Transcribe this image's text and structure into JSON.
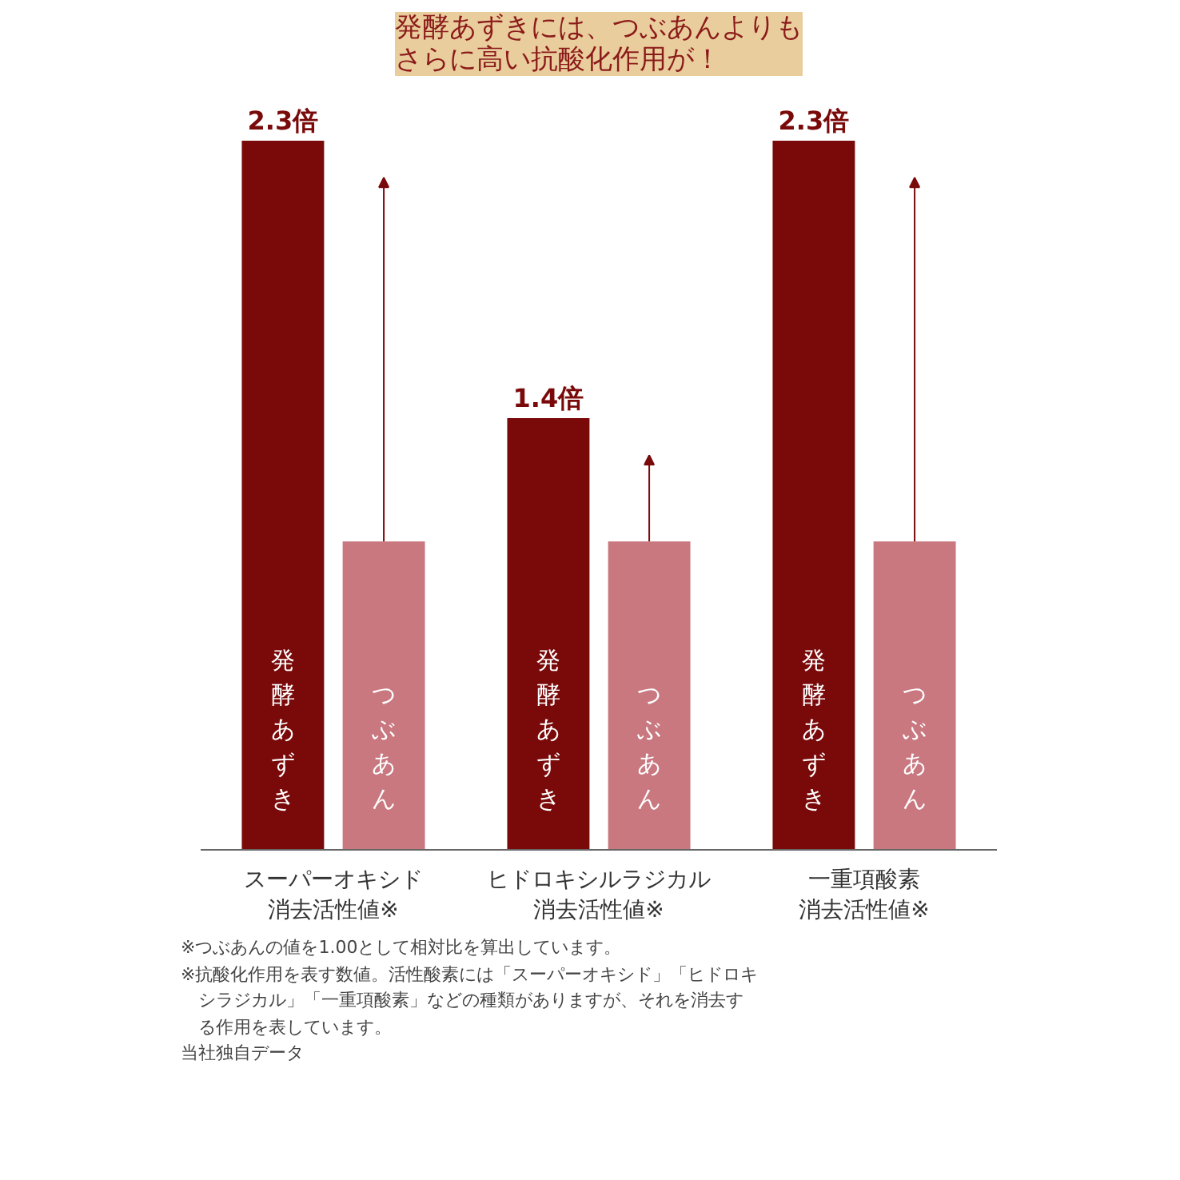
{
  "chart_data": {
    "type": "bar",
    "title": "発酵あずきには、つぶあんよりもさらに高い抗酸化作用が！",
    "categories": [
      "スーパーオキシド消去活性値※",
      "ヒドロキシルラジカル消去活性値※",
      "一重項酸素消去活性値※"
    ],
    "series": [
      {
        "name": "発酵あずき",
        "color": "#7a0a0a",
        "values": [
          2.3,
          1.4,
          2.3
        ],
        "value_labels": [
          "2.3倍",
          "1.4倍",
          "2.3倍"
        ]
      },
      {
        "name": "つぶあん",
        "color": "#c97880",
        "values": [
          1,
          1,
          1
        ]
      }
    ],
    "legend": false,
    "grid": false,
    "annotations": [
      "※つぶあんの値を1.00として相対比を算出しています。",
      "※抗酸化作用を表す数値。活性酸素には「スーパーオキシド」「ヒドロキシラジカル」「一重項酸素」などの種類がありますが、それを消去する作用を表しています。",
      "当社独自データ"
    ]
  }
}
